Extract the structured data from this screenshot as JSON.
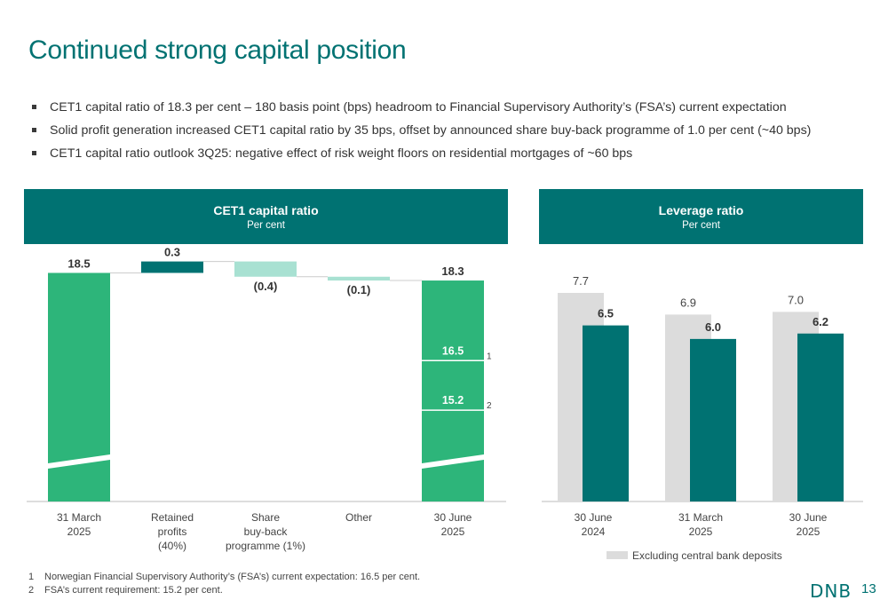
{
  "title": "Continued strong capital position",
  "bullets": [
    "CET1 capital ratio of 18.3 per cent – 180 basis point (bps) headroom to Financial Supervisory Authority’s (FSA’s) current expectation",
    "Solid profit generation increased CET1 capital ratio by 35 bps, offset by announced share buy-back programme of 1.0 per cent (~40 bps)",
    "CET1 capital ratio outlook 3Q25: negative effect of risk weight floors on residential mortgages of ~60 bps"
  ],
  "panels": {
    "cet1": {
      "title": "CET1 capital ratio",
      "subtitle": "Per cent"
    },
    "leverage": {
      "title": "Leverage ratio",
      "subtitle": "Per cent"
    }
  },
  "colors": {
    "brand": "#007272",
    "green": "#2db57a",
    "light_teal": "#a8e1d2",
    "grey_bar": "#dcdcdc",
    "text": "#3a3a3a"
  },
  "chart_data": [
    {
      "type": "bar",
      "subtype": "waterfall",
      "title": "CET1 capital ratio",
      "subtitle": "Per cent",
      "categories": [
        "31 March\n2025",
        "Retained\nprofits\n(40%)",
        "Share\nbuy-back\nprogramme (1%)",
        "Other",
        "30 June\n2025"
      ],
      "values": [
        18.5,
        0.3,
        -0.4,
        -0.1,
        18.3
      ],
      "value_labels": [
        "18.5",
        "0.3",
        "(0.4)",
        "(0.1)",
        "18.3"
      ],
      "bar_kinds": [
        "total",
        "increase",
        "decrease",
        "decrease",
        "total"
      ],
      "axis_break": true,
      "reference_levels": [
        {
          "value": 16.5,
          "label": "16.5",
          "footnote": "1"
        },
        {
          "value": 15.2,
          "label": "15.2",
          "footnote": "2"
        }
      ],
      "ylim": [
        12.5,
        19.0
      ]
    },
    {
      "type": "bar",
      "title": "Leverage ratio",
      "subtitle": "Per cent",
      "categories": [
        "30 June\n2024",
        "31 March\n2025",
        "30 June\n2025"
      ],
      "series": [
        {
          "name": "Excluding central bank deposits",
          "values": [
            7.7,
            6.9,
            7.0
          ]
        },
        {
          "values": [
            6.5,
            6.0,
            6.2
          ]
        }
      ],
      "legend": {
        "position": "bottom",
        "entries": [
          "Excluding central bank deposits"
        ]
      },
      "ylim": [
        0,
        7.7
      ]
    }
  ],
  "footnotes": [
    {
      "num": "1",
      "text": "Norwegian Financial Supervisory Authority’s (FSA’s) current expectation: 16.5 per cent."
    },
    {
      "num": "2",
      "text": "FSA’s current requirement: 15.2 per cent."
    }
  ],
  "logo": "DNB",
  "page_number": "13"
}
